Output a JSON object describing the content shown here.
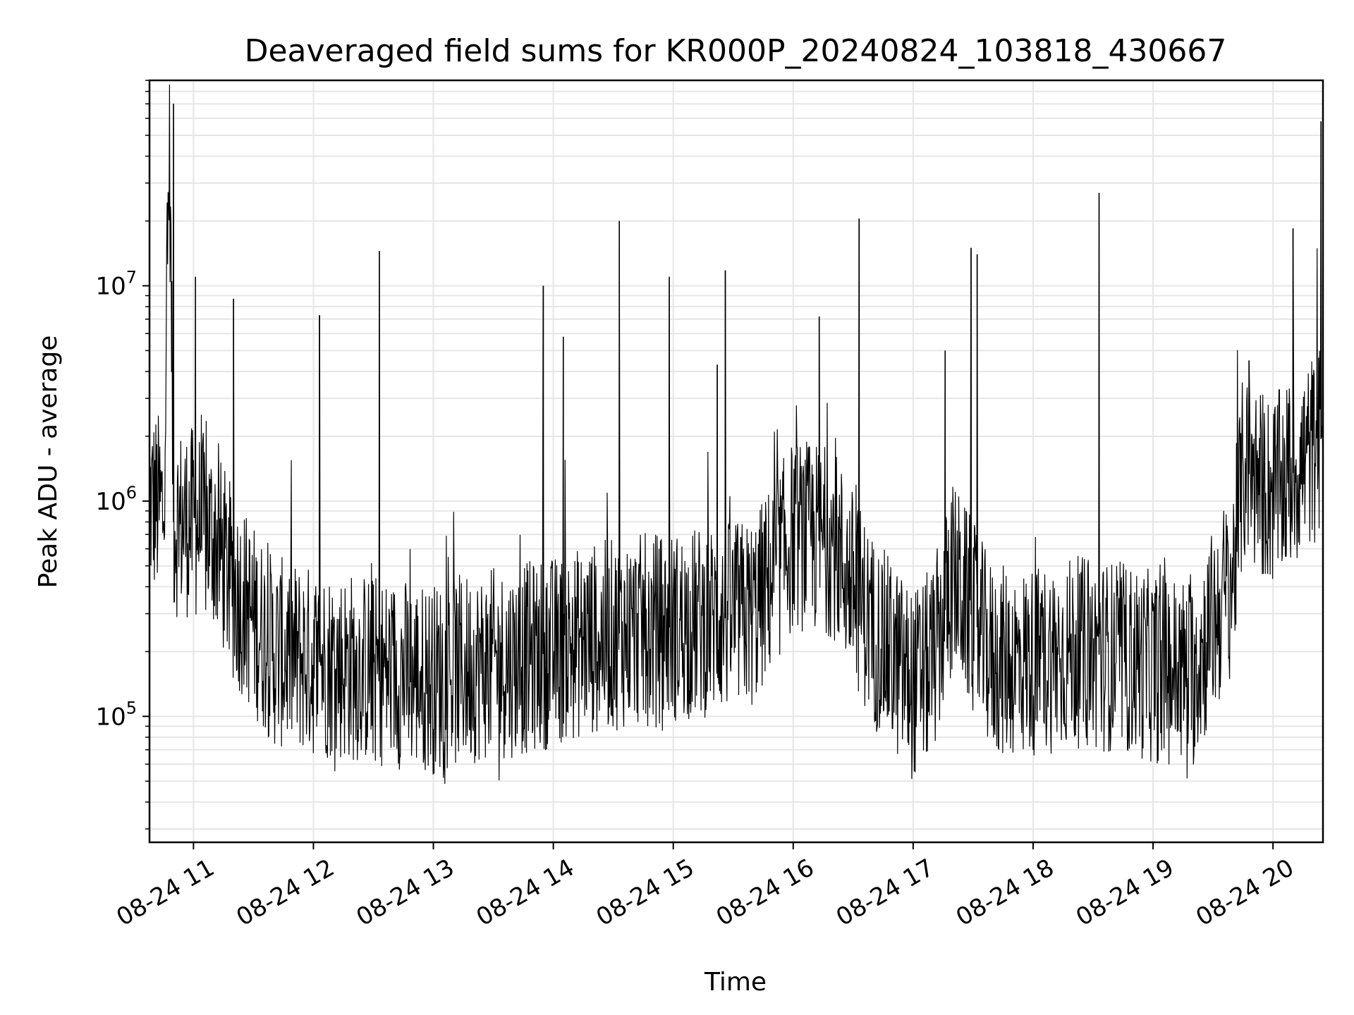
{
  "chart_data": {
    "type": "line",
    "title": "Deaveraged field sums for KR000P_20240824_103818_430667",
    "xlabel": "Time",
    "ylabel": "Peak ADU - average",
    "yscale": "log",
    "grid": true,
    "line_color": "#000000",
    "grid_color": "#e6e6e6",
    "xlim": [
      "2024-08-24 10:38",
      "2024-08-24 20:25"
    ],
    "ylim": [
      26000,
      90000000
    ],
    "x_ticks": [
      {
        "value": "2024-08-24 11:00",
        "label": "08-24 11"
      },
      {
        "value": "2024-08-24 12:00",
        "label": "08-24 12"
      },
      {
        "value": "2024-08-24 13:00",
        "label": "08-24 13"
      },
      {
        "value": "2024-08-24 14:00",
        "label": "08-24 14"
      },
      {
        "value": "2024-08-24 15:00",
        "label": "08-24 15"
      },
      {
        "value": "2024-08-24 16:00",
        "label": "08-24 16"
      },
      {
        "value": "2024-08-24 17:00",
        "label": "08-24 17"
      },
      {
        "value": "2024-08-24 18:00",
        "label": "08-24 18"
      },
      {
        "value": "2024-08-24 19:00",
        "label": "08-24 19"
      },
      {
        "value": "2024-08-24 20:00",
        "label": "08-24 20"
      }
    ],
    "y_ticks": [
      {
        "value": 100000,
        "base": "10",
        "exp": "5"
      },
      {
        "value": 1000000,
        "base": "10",
        "exp": "6"
      },
      {
        "value": 10000000,
        "base": "10",
        "exp": "7"
      }
    ],
    "series": [
      {
        "x": [
          "2024-08-24 10:38",
          "2024-08-24 10:45",
          "2024-08-24 10:48",
          "2024-08-24 10:50",
          "2024-08-24 11:00",
          "2024-08-24 11:10",
          "2024-08-24 11:20",
          "2024-08-24 11:40",
          "2024-08-24 12:00",
          "2024-08-24 12:20",
          "2024-08-24 12:40",
          "2024-08-24 13:00",
          "2024-08-24 13:20",
          "2024-08-24 13:40",
          "2024-08-24 14:00",
          "2024-08-24 14:20",
          "2024-08-24 14:40",
          "2024-08-24 15:00",
          "2024-08-24 15:20",
          "2024-08-24 15:40",
          "2024-08-24 16:00",
          "2024-08-24 16:20",
          "2024-08-24 16:40",
          "2024-08-24 17:00",
          "2024-08-24 17:10",
          "2024-08-24 17:20",
          "2024-08-24 17:40",
          "2024-08-24 18:00",
          "2024-08-24 18:20",
          "2024-08-24 18:40",
          "2024-08-24 19:00",
          "2024-08-24 19:20",
          "2024-08-24 19:40",
          "2024-08-24 19:45",
          "2024-08-24 20:00",
          "2024-08-24 20:15",
          "2024-08-24 20:25"
        ],
        "y": [
          1000000,
          900000,
          50000000,
          800000,
          800000,
          700000,
          400000,
          200000,
          180000,
          170000,
          160000,
          150000,
          170000,
          180000,
          200000,
          230000,
          250000,
          260000,
          280000,
          300000,
          700000,
          650000,
          250000,
          140000,
          180000,
          450000,
          180000,
          180000,
          200000,
          190000,
          170000,
          160000,
          450000,
          1400000,
          1100000,
          1500000,
          2000000
        ],
        "spikes": [
          {
            "x": "2024-08-24 10:50",
            "y": 70000000
          },
          {
            "x": "2024-08-24 11:01",
            "y": 11000000
          },
          {
            "x": "2024-08-24 11:20",
            "y": 8700000
          },
          {
            "x": "2024-08-24 12:03",
            "y": 7300000
          },
          {
            "x": "2024-08-24 12:33",
            "y": 14500000
          },
          {
            "x": "2024-08-24 13:55",
            "y": 10000000
          },
          {
            "x": "2024-08-24 14:05",
            "y": 5800000
          },
          {
            "x": "2024-08-24 14:33",
            "y": 20000000
          },
          {
            "x": "2024-08-24 14:58",
            "y": 11000000
          },
          {
            "x": "2024-08-24 15:22",
            "y": 4300000
          },
          {
            "x": "2024-08-24 15:26",
            "y": 11800000
          },
          {
            "x": "2024-08-24 16:13",
            "y": 7200000
          },
          {
            "x": "2024-08-24 16:33",
            "y": 20500000
          },
          {
            "x": "2024-08-24 17:16",
            "y": 5000000
          },
          {
            "x": "2024-08-24 17:29",
            "y": 15000000
          },
          {
            "x": "2024-08-24 17:32",
            "y": 14000000
          },
          {
            "x": "2024-08-24 18:33",
            "y": 27000000
          },
          {
            "x": "2024-08-24 19:48",
            "y": 4500000
          },
          {
            "x": "2024-08-24 20:10",
            "y": 18500000
          },
          {
            "x": "2024-08-24 20:24",
            "y": 58000000
          }
        ]
      }
    ]
  }
}
